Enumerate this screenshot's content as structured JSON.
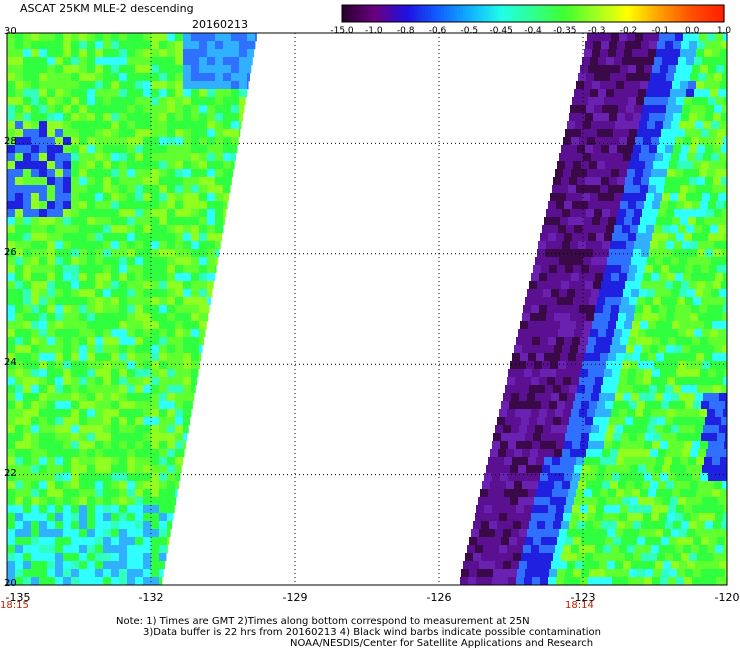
{
  "header": {
    "title": "ASCAT 25KM MLE-2 descending",
    "date": "20160213"
  },
  "colorbar": {
    "labels": [
      "-15.0",
      "-1.0",
      "-0.8",
      "-0.6",
      "-0.5",
      "-0.45",
      "-0.4",
      "-0.35",
      "-0.3",
      "-0.2",
      "-0.1",
      "0.0",
      "1.0"
    ],
    "colors": [
      "#2a0030",
      "#6a0080",
      "#2010e0",
      "#1060ff",
      "#10b0ff",
      "#20ffe8",
      "#30ff90",
      "#40ff30",
      "#a0ff20",
      "#ffff00",
      "#ffa000",
      "#ff5000",
      "#ff2000"
    ]
  },
  "chart_data": {
    "type": "heatmap",
    "title": "ASCAT 25KM MLE-2 descending",
    "xlabel": "",
    "ylabel": "",
    "x_ticks": [
      "-135",
      "-132",
      "-129",
      "-126",
      "-123",
      "-120"
    ],
    "y_ticks": [
      "30",
      "28",
      "26",
      "24",
      "22",
      "20"
    ],
    "xlim": [
      -135,
      -120
    ],
    "ylim": [
      20,
      30
    ],
    "grid": true,
    "swaths": [
      {
        "description_values": "western swath, mostly -0.35 to -0.3, some -0.6 to -0.45",
        "lon_west": -135,
        "lon_east_at_top": -129.8,
        "lon_east_at_bottom": -131.8
      },
      {
        "description_values": "eastern swath, -15.0 to -0.8 near western edge, -0.4 to -0.3 elsewhere",
        "lon_west_at_top": -122.9,
        "lon_west_at_bottom": -125.6,
        "lon_east": -120
      }
    ],
    "times": [
      {
        "x": -135,
        "label": "18:15"
      },
      {
        "x": -123,
        "label": "18:14"
      }
    ]
  },
  "notes": {
    "line1": "Note: 1) Times are GMT 2)Times along bottom correspond to measurement at 25N",
    "line2": "3)Data buffer is 22 hrs from 20160213 4) Black wind barbs indicate possible contamination",
    "line3": "NOAA/NESDIS/Center for Satellite Applications and Research"
  }
}
